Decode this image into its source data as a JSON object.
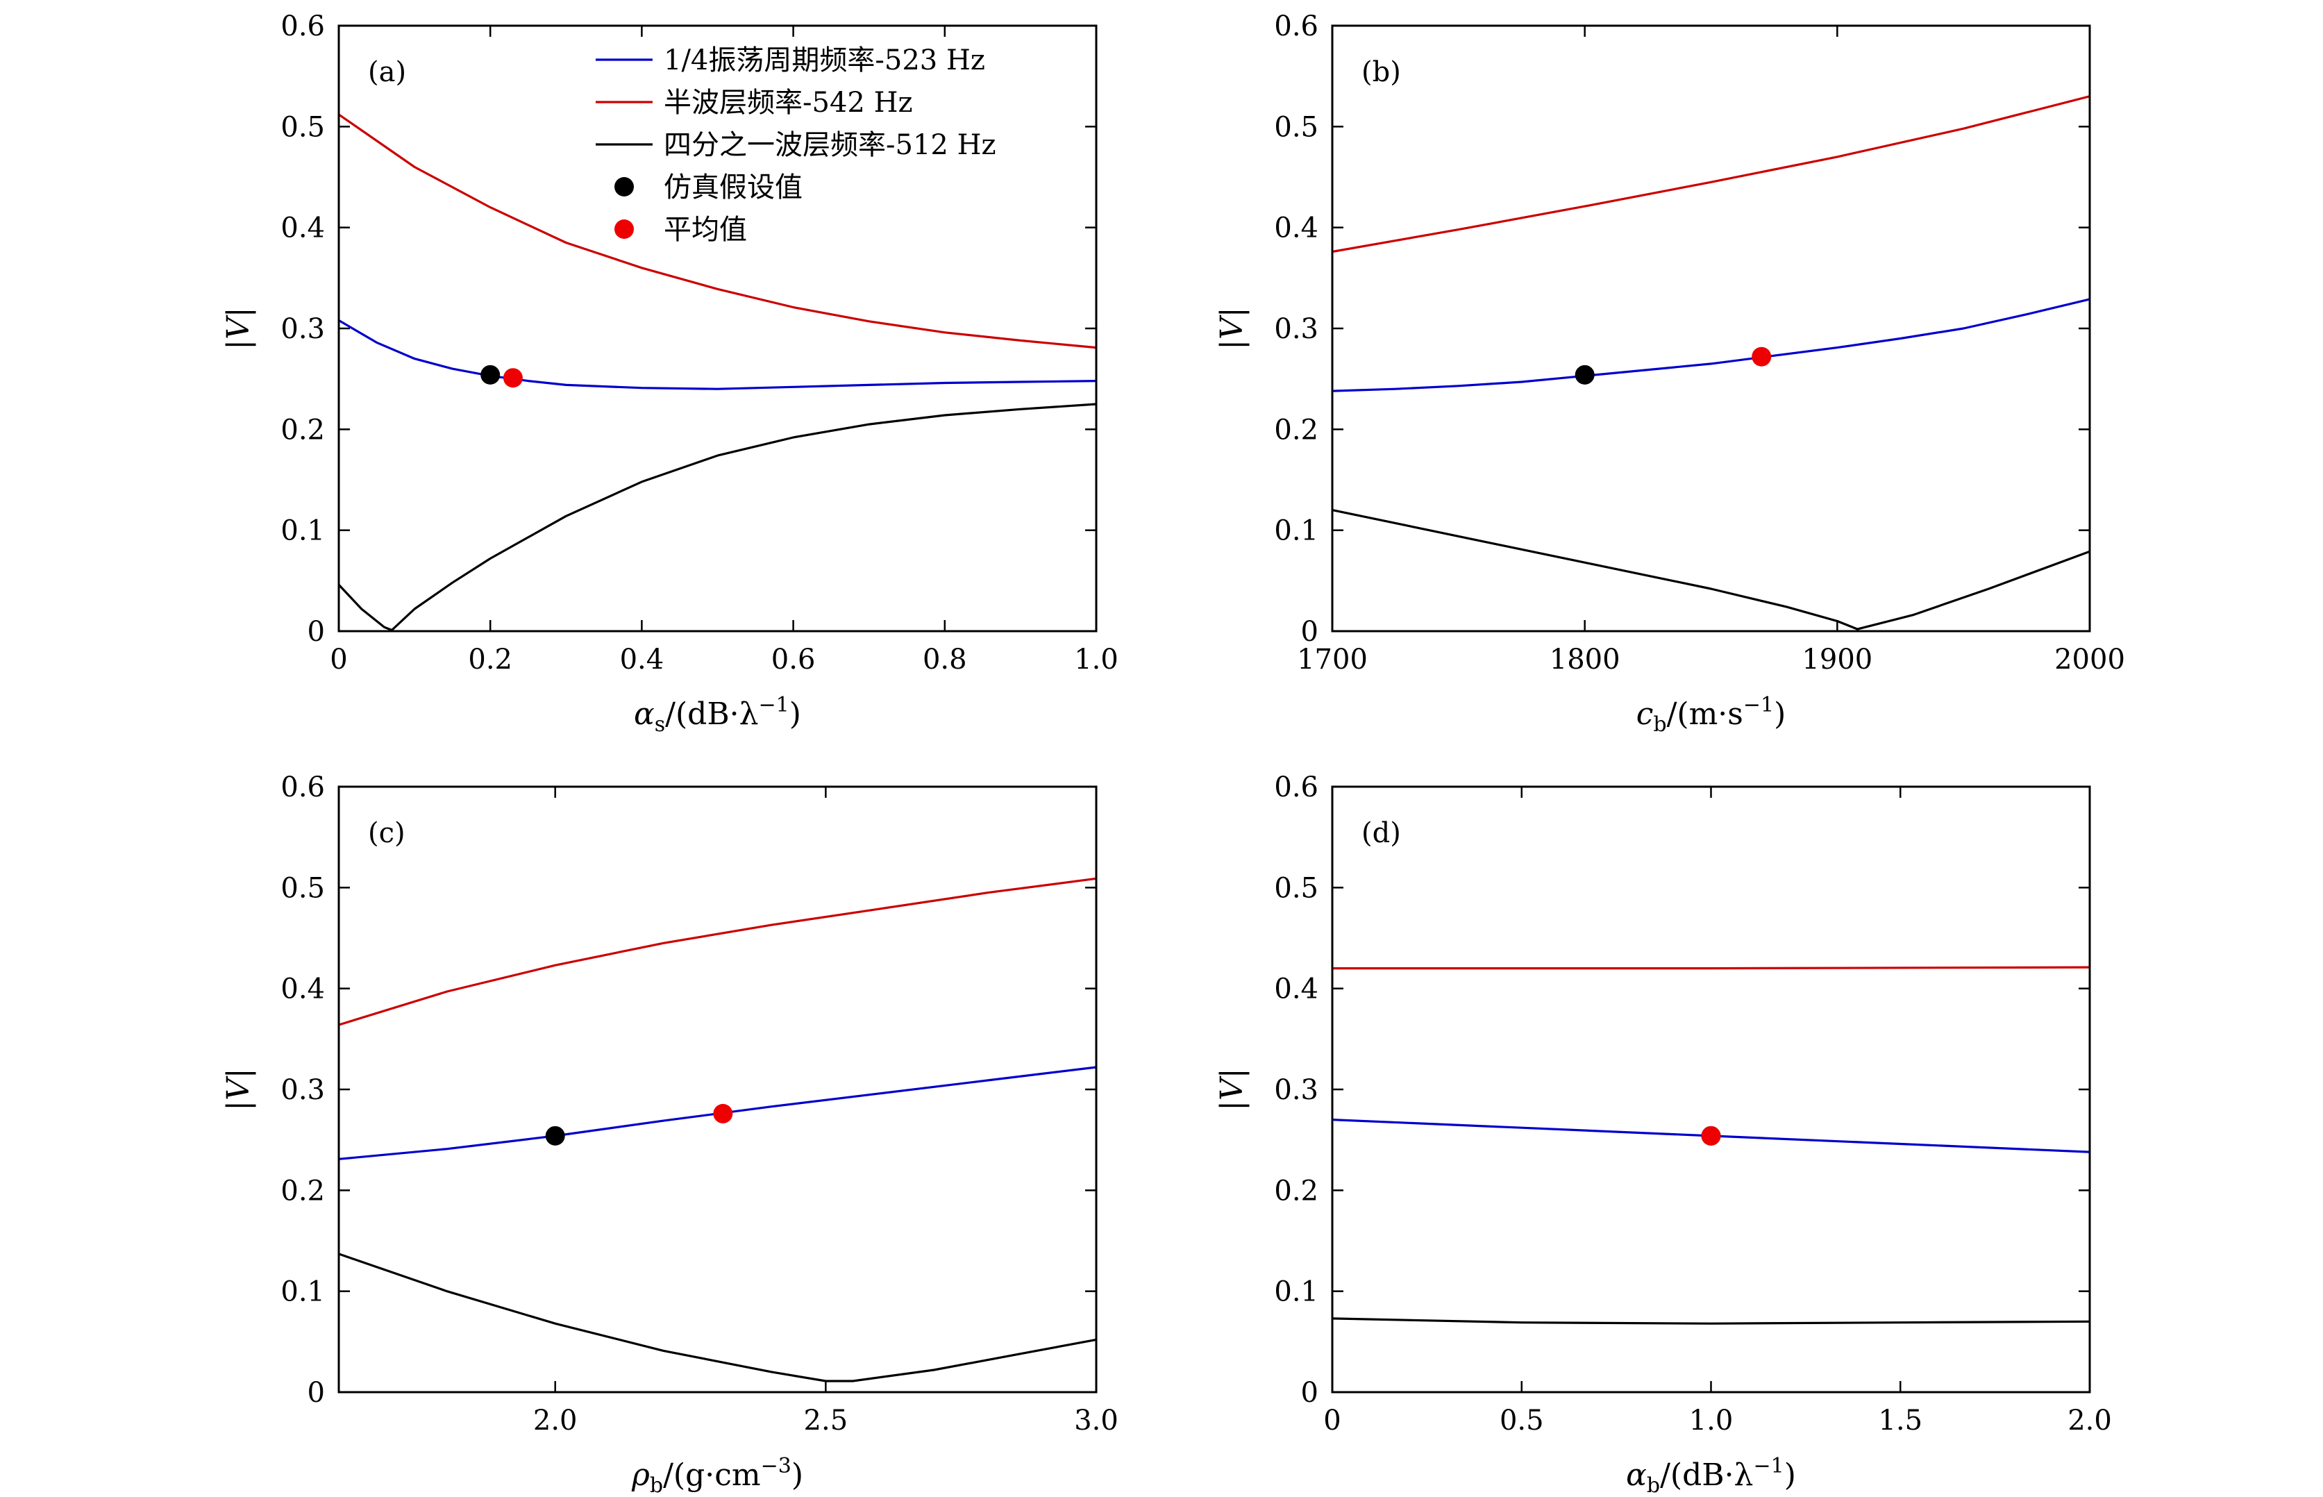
{
  "legend": {
    "position": "top-right of panel (a)",
    "entries": [
      {
        "kind": "line",
        "color": "#0000cc",
        "label": "1/4振荡周期频率-523 Hz"
      },
      {
        "kind": "line",
        "color": "#cc0000",
        "label": "半波层频率-542 Hz"
      },
      {
        "kind": "line",
        "color": "#000000",
        "label": "四分之一波层频率-512 Hz"
      },
      {
        "kind": "dot",
        "color": "#000000",
        "label": "仿真假设值"
      },
      {
        "kind": "dot",
        "color": "#ee0000",
        "label": "平均值"
      }
    ]
  },
  "chart_data": [
    {
      "type": "line",
      "panel": "(a)",
      "xlabel": {
        "sym": "α",
        "sub": "s",
        "unit": "/(dB·λ",
        "sup": "−1",
        "tail": ")"
      },
      "ylabel": "|V|",
      "xlim": [
        0,
        1.0
      ],
      "ylim": [
        0,
        0.6
      ],
      "xticks": [
        {
          "v": 0,
          "label": "0"
        },
        {
          "v": 0.2,
          "label": "0.2"
        },
        {
          "v": 0.4,
          "label": "0.4"
        },
        {
          "v": 0.6,
          "label": "0.6"
        },
        {
          "v": 0.8,
          "label": "0.8"
        },
        {
          "v": 1.0,
          "label": "1.0"
        }
      ],
      "yticks": [
        {
          "v": 0,
          "label": "0"
        },
        {
          "v": 0.1,
          "label": "0.1"
        },
        {
          "v": 0.2,
          "label": "0.2"
        },
        {
          "v": 0.3,
          "label": "0.3"
        },
        {
          "v": 0.4,
          "label": "0.4"
        },
        {
          "v": 0.5,
          "label": "0.5"
        },
        {
          "v": 0.6,
          "label": "0.6"
        }
      ],
      "series": [
        {
          "name": "1/4振荡周期频率-523 Hz",
          "color": "#0000cc",
          "x": [
            0,
            0.05,
            0.1,
            0.15,
            0.2,
            0.25,
            0.3,
            0.4,
            0.5,
            0.6,
            0.7,
            0.8,
            0.9,
            1.0
          ],
          "y": [
            0.308,
            0.286,
            0.27,
            0.26,
            0.253,
            0.248,
            0.244,
            0.241,
            0.24,
            0.242,
            0.244,
            0.246,
            0.247,
            0.248
          ]
        },
        {
          "name": "半波层频率-542 Hz",
          "color": "#cc0000",
          "x": [
            0,
            0.1,
            0.2,
            0.3,
            0.4,
            0.5,
            0.6,
            0.7,
            0.8,
            0.9,
            1.0
          ],
          "y": [
            0.512,
            0.46,
            0.42,
            0.385,
            0.36,
            0.339,
            0.321,
            0.307,
            0.296,
            0.288,
            0.281
          ]
        },
        {
          "name": "四分之一波层频率-512 Hz",
          "color": "#000000",
          "x": [
            0,
            0.03,
            0.06,
            0.07,
            0.1,
            0.15,
            0.2,
            0.3,
            0.4,
            0.5,
            0.6,
            0.7,
            0.8,
            0.9,
            1.0
          ],
          "y": [
            0.046,
            0.022,
            0.004,
            0.001,
            0.022,
            0.048,
            0.072,
            0.114,
            0.148,
            0.174,
            0.192,
            0.205,
            0.214,
            0.22,
            0.225
          ]
        }
      ],
      "markers": [
        {
          "name": "仿真假设值",
          "x": 0.2,
          "y": 0.254,
          "color": "#000000"
        },
        {
          "name": "平均值",
          "x": 0.23,
          "y": 0.251,
          "color": "#ee0000"
        }
      ]
    },
    {
      "type": "line",
      "panel": "(b)",
      "xlabel": {
        "sym": "c",
        "sub": "b",
        "unit": "/(m·s",
        "sup": "−1",
        "tail": ")"
      },
      "ylabel": "|V|",
      "xlim": [
        1700,
        2000
      ],
      "ylim": [
        0,
        0.6
      ],
      "xticks": [
        {
          "v": 1700,
          "label": "1700"
        },
        {
          "v": 1800,
          "label": "1800"
        },
        {
          "v": 1900,
          "label": "1900"
        },
        {
          "v": 2000,
          "label": "2000"
        }
      ],
      "yticks": [
        {
          "v": 0,
          "label": "0"
        },
        {
          "v": 0.1,
          "label": "0.1"
        },
        {
          "v": 0.2,
          "label": "0.2"
        },
        {
          "v": 0.3,
          "label": "0.3"
        },
        {
          "v": 0.4,
          "label": "0.4"
        },
        {
          "v": 0.5,
          "label": "0.5"
        },
        {
          "v": 0.6,
          "label": "0.6"
        }
      ],
      "series": [
        {
          "name": "1/4振荡周期频率-523 Hz",
          "color": "#0000cc",
          "x": [
            1700,
            1725,
            1750,
            1775,
            1800,
            1825,
            1850,
            1875,
            1900,
            1925,
            1950,
            1975,
            2000
          ],
          "y": [
            0.238,
            0.24,
            0.243,
            0.247,
            0.253,
            0.259,
            0.265,
            0.273,
            0.281,
            0.29,
            0.3,
            0.314,
            0.329
          ]
        },
        {
          "name": "半波层频率-542 Hz",
          "color": "#cc0000",
          "x": [
            1700,
            1750,
            1800,
            1850,
            1900,
            1950,
            2000
          ],
          "y": [
            0.376,
            0.398,
            0.421,
            0.445,
            0.47,
            0.498,
            0.53
          ]
        },
        {
          "name": "四分之一波层频率-512 Hz",
          "color": "#000000",
          "x": [
            1700,
            1750,
            1800,
            1850,
            1880,
            1900,
            1908,
            1930,
            1960,
            2000
          ],
          "y": [
            0.12,
            0.094,
            0.068,
            0.042,
            0.024,
            0.01,
            0.002,
            0.016,
            0.042,
            0.079
          ]
        }
      ],
      "markers": [
        {
          "name": "仿真假设值",
          "x": 1800,
          "y": 0.254,
          "color": "#000000"
        },
        {
          "name": "平均值",
          "x": 1870,
          "y": 0.272,
          "color": "#ee0000"
        }
      ]
    },
    {
      "type": "line",
      "panel": "(c)",
      "xlabel": {
        "sym": "ρ",
        "sub": "b",
        "unit": "/(g·cm",
        "sup": "−3",
        "tail": ")"
      },
      "ylabel": "|V|",
      "xlim": [
        1.6,
        3.0
      ],
      "ylim": [
        0,
        0.6
      ],
      "xticks": [
        {
          "v": 2.0,
          "label": "2.0"
        },
        {
          "v": 2.5,
          "label": "2.5"
        },
        {
          "v": 3.0,
          "label": "3.0"
        }
      ],
      "yticks": [
        {
          "v": 0,
          "label": "0"
        },
        {
          "v": 0.1,
          "label": "0.1"
        },
        {
          "v": 0.2,
          "label": "0.2"
        },
        {
          "v": 0.3,
          "label": "0.3"
        },
        {
          "v": 0.4,
          "label": "0.4"
        },
        {
          "v": 0.5,
          "label": "0.5"
        },
        {
          "v": 0.6,
          "label": "0.6"
        }
      ],
      "series": [
        {
          "name": "1/4振荡周期频率-523 Hz",
          "color": "#0000cc",
          "x": [
            1.6,
            1.8,
            2.0,
            2.2,
            2.4,
            2.6,
            2.8,
            3.0
          ],
          "y": [
            0.231,
            0.241,
            0.254,
            0.269,
            0.283,
            0.296,
            0.309,
            0.322
          ]
        },
        {
          "name": "半波层频率-542 Hz",
          "color": "#cc0000",
          "x": [
            1.6,
            1.8,
            2.0,
            2.2,
            2.4,
            2.6,
            2.8,
            3.0
          ],
          "y": [
            0.364,
            0.397,
            0.423,
            0.445,
            0.463,
            0.479,
            0.495,
            0.509
          ]
        },
        {
          "name": "四分之一波层频率-512 Hz",
          "color": "#000000",
          "x": [
            1.6,
            1.8,
            2.0,
            2.2,
            2.4,
            2.5,
            2.55,
            2.7,
            2.85,
            3.0
          ],
          "y": [
            0.137,
            0.1,
            0.068,
            0.041,
            0.02,
            0.011,
            0.011,
            0.022,
            0.037,
            0.052
          ]
        }
      ],
      "markers": [
        {
          "name": "仿真假设值",
          "x": 2.0,
          "y": 0.254,
          "color": "#000000"
        },
        {
          "name": "平均值",
          "x": 2.31,
          "y": 0.276,
          "color": "#ee0000"
        }
      ]
    },
    {
      "type": "line",
      "panel": "(d)",
      "xlabel": {
        "sym": "α",
        "sub": "b",
        "unit": "/(dB·λ",
        "sup": "−1",
        "tail": ")"
      },
      "ylabel": "|V|",
      "xlim": [
        0,
        2.0
      ],
      "ylim": [
        0,
        0.6
      ],
      "xticks": [
        {
          "v": 0,
          "label": "0"
        },
        {
          "v": 0.5,
          "label": "0.5"
        },
        {
          "v": 1.0,
          "label": "1.0"
        },
        {
          "v": 1.5,
          "label": "1.5"
        },
        {
          "v": 2.0,
          "label": "2.0"
        }
      ],
      "yticks": [
        {
          "v": 0,
          "label": "0"
        },
        {
          "v": 0.1,
          "label": "0.1"
        },
        {
          "v": 0.2,
          "label": "0.2"
        },
        {
          "v": 0.3,
          "label": "0.3"
        },
        {
          "v": 0.4,
          "label": "0.4"
        },
        {
          "v": 0.5,
          "label": "0.5"
        },
        {
          "v": 0.6,
          "label": "0.6"
        }
      ],
      "series": [
        {
          "name": "1/4振荡周期频率-523 Hz",
          "color": "#0000cc",
          "x": [
            0,
            0.5,
            1.0,
            1.5,
            2.0
          ],
          "y": [
            0.27,
            0.262,
            0.254,
            0.246,
            0.238
          ]
        },
        {
          "name": "半波层频率-542 Hz",
          "color": "#cc0000",
          "x": [
            0,
            1.0,
            2.0
          ],
          "y": [
            0.42,
            0.42,
            0.421
          ]
        },
        {
          "name": "四分之一波层频率-512 Hz",
          "color": "#000000",
          "x": [
            0,
            0.5,
            1.0,
            1.5,
            2.0
          ],
          "y": [
            0.073,
            0.069,
            0.068,
            0.069,
            0.07
          ]
        }
      ],
      "markers": [
        {
          "name": "仿真假设值",
          "x": 1.0,
          "y": 0.254,
          "color": "#000000"
        },
        {
          "name": "平均值",
          "x": 1.0,
          "y": 0.254,
          "color": "#ee0000"
        }
      ]
    }
  ]
}
